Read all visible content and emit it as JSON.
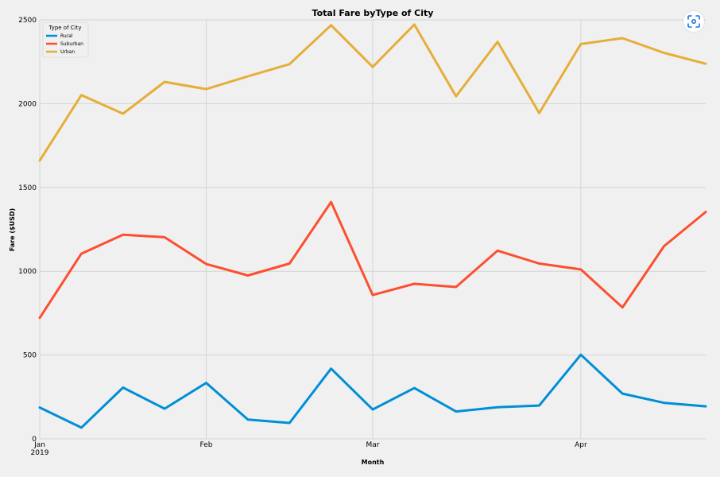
{
  "chart_data": {
    "type": "line",
    "title": "Total Fare byType of City",
    "xlabel": "Month",
    "ylabel": "Fare ($USD)",
    "ylim": [
      0,
      2500
    ],
    "yticks": [
      0,
      500,
      1000,
      1500,
      2000,
      2500
    ],
    "xlim": [
      "2019-01-06",
      "2019-04-28"
    ],
    "x": [
      "2019-01-06",
      "2019-01-13",
      "2019-01-20",
      "2019-01-27",
      "2019-02-03",
      "2019-02-10",
      "2019-02-17",
      "2019-02-24",
      "2019-03-03",
      "2019-03-10",
      "2019-03-17",
      "2019-03-24",
      "2019-03-31",
      "2019-04-07",
      "2019-04-14",
      "2019-04-21",
      "2019-04-28"
    ],
    "x_tick_labels": [
      {
        "date": "2019-01-06",
        "label": "Jan",
        "sublabel": "2019"
      },
      {
        "date": "2019-02-03",
        "label": "Feb",
        "sublabel": ""
      },
      {
        "date": "2019-03-03",
        "label": "Mar",
        "sublabel": ""
      },
      {
        "date": "2019-04-07",
        "label": "Apr",
        "sublabel": ""
      }
    ],
    "grid": true,
    "legend": {
      "title": "Type of City",
      "placement": "top-left"
    },
    "series": [
      {
        "name": "Rural",
        "color": "#008fd5",
        "values": [
          187,
          67,
          306,
          180,
          334,
          115,
          95,
          419,
          175,
          303,
          163,
          189,
          199,
          502,
          270,
          215,
          194
        ]
      },
      {
        "name": "Suburban",
        "color": "#fc4f30",
        "values": [
          722,
          1105,
          1218,
          1203,
          1043,
          975,
          1046,
          1413,
          858,
          925,
          906,
          1123,
          1046,
          1011,
          784,
          1150,
          1354
        ]
      },
      {
        "name": "Urban",
        "color": "#e5ae38",
        "values": [
          1661,
          2051,
          1940,
          2130,
          2087,
          2163,
          2236,
          2468,
          2219,
          2472,
          2044,
          2369,
          1944,
          2356,
          2391,
          2303,
          2238
        ]
      }
    ]
  },
  "toolbar": {
    "lens_icon": "lens-icon"
  }
}
